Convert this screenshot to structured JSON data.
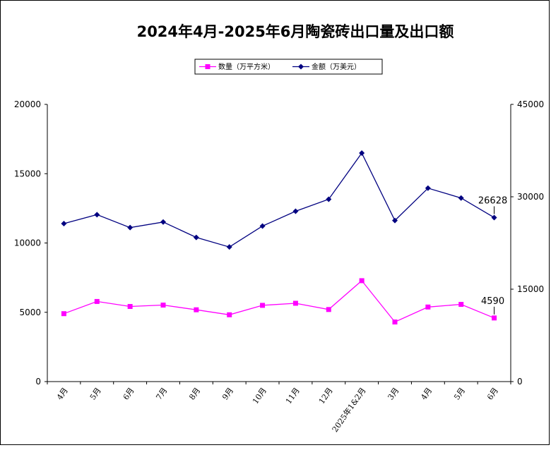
{
  "chart_data": {
    "type": "line",
    "title": "2024年4月-2025年6月陶瓷砖出口量及出口额",
    "categories": [
      "4月",
      "5月",
      "6月",
      "7月",
      "8月",
      "9月",
      "10月",
      "11月",
      "12月",
      "2025年1&2月",
      "3月",
      "4月",
      "5月",
      "6月"
    ],
    "y_left": {
      "ticks": [
        "0",
        "5000",
        "10000",
        "15000",
        "20000"
      ],
      "min": 0,
      "max": 20000
    },
    "y_right": {
      "ticks": [
        "0",
        "15000",
        "30000",
        "45000"
      ],
      "min": 0,
      "max": 45000
    },
    "series": [
      {
        "name": "数量（万平方米）",
        "axis": "left",
        "color": "#ff00ff",
        "marker": "square",
        "values": [
          4900,
          5780,
          5420,
          5520,
          5180,
          4820,
          5500,
          5650,
          5200,
          7280,
          4300,
          5380,
          5570,
          4590
        ]
      },
      {
        "name": "金额（万美元）",
        "axis": "right",
        "color": "#000080",
        "marker": "diamond",
        "values": [
          25650,
          27100,
          25000,
          25900,
          23400,
          21850,
          25250,
          27650,
          29600,
          37100,
          26150,
          31400,
          29800,
          26628
        ]
      }
    ],
    "annotations": [
      {
        "series": 1,
        "index": 13,
        "text": "26628"
      },
      {
        "series": 0,
        "index": 13,
        "text": "4590"
      }
    ],
    "legend_position": "top"
  }
}
